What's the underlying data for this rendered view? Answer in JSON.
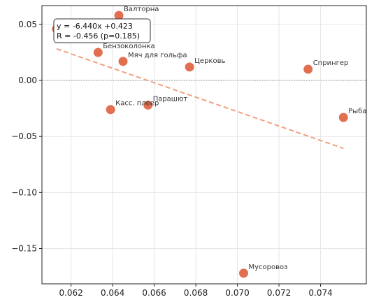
{
  "chart_data": {
    "type": "scatter",
    "title": "",
    "xlabel": "",
    "ylabel": "",
    "xlim": [
      0.0606,
      0.0762
    ],
    "ylim": [
      -0.1815,
      0.0668
    ],
    "x_ticks": [
      "0.062",
      "0.064",
      "0.066",
      "0.068",
      "0.070",
      "0.072",
      "0.074"
    ],
    "x_tick_values": [
      0.062,
      0.064,
      0.066,
      0.068,
      0.07,
      0.072,
      0.074
    ],
    "y_ticks": [
      "0.05",
      "0.00",
      "−0.05",
      "−0.10",
      "−0.15"
    ],
    "y_tick_values": [
      0.05,
      0.0,
      -0.05,
      -0.1,
      -0.15
    ],
    "grid": true,
    "zero_line": true,
    "points": [
      {
        "label": "Валторна",
        "x": 0.0643,
        "y": 0.058
      },
      {
        "label": "",
        "x": 0.0613,
        "y": 0.046
      },
      {
        "label": "Бензоколонка",
        "x": 0.0633,
        "y": 0.025
      },
      {
        "label": "Мяч для гольфа",
        "x": 0.0645,
        "y": 0.017
      },
      {
        "label": "Церковь",
        "x": 0.0677,
        "y": 0.012
      },
      {
        "label": "Спрингер",
        "x": 0.0734,
        "y": 0.01
      },
      {
        "label": "Касс. плеер",
        "x": 0.0639,
        "y": -0.026
      },
      {
        "label": "Парашют",
        "x": 0.0657,
        "y": -0.022
      },
      {
        "label": "Рыба",
        "x": 0.0751,
        "y": -0.033
      },
      {
        "label": "Мусоровоз",
        "x": 0.0703,
        "y": -0.172
      }
    ],
    "trendline": {
      "slope": -6.44,
      "intercept": 0.423,
      "x_range": [
        0.0613,
        0.0751
      ]
    },
    "annotation": [
      "y = -6.440x +0.423",
      "R = -0.456 (p=0.185)"
    ],
    "colors": {
      "point": "#e07050",
      "point_edge": "#ffffff",
      "trend": "#f0a080",
      "grid": "#e6e6e6",
      "zero": "#999999"
    }
  }
}
